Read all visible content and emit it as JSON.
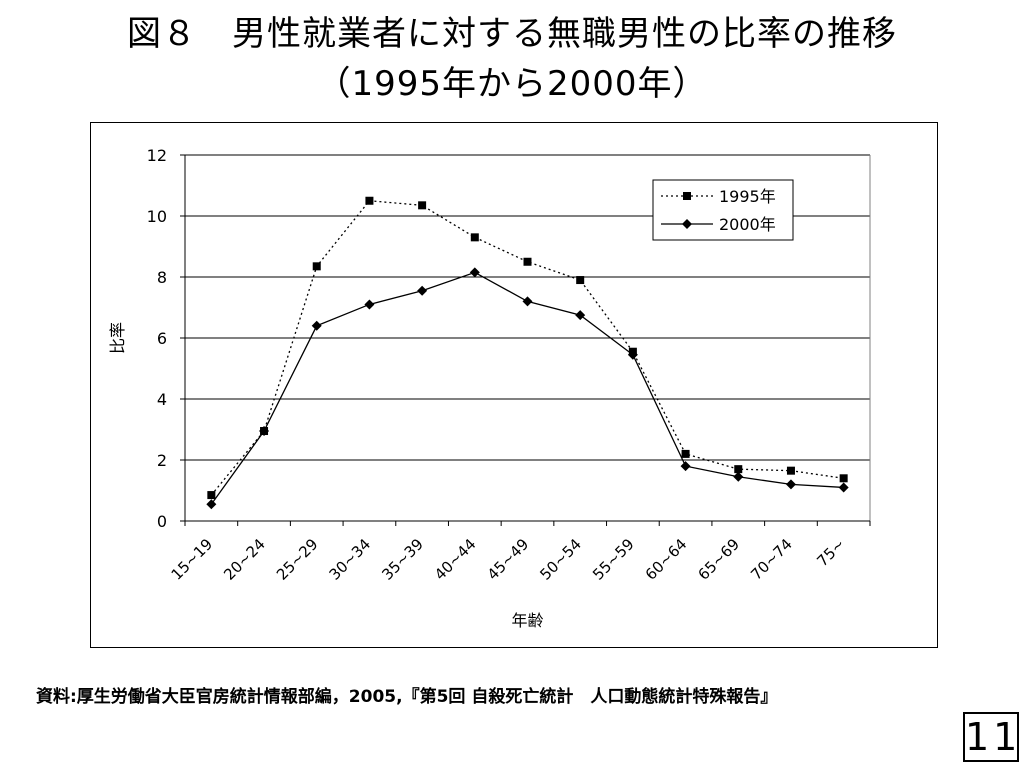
{
  "title_line1": "図８　男性就業者に対する無職男性の比率の推移",
  "title_line2": "（1995年から2000年）",
  "source": "資料:厚生労働省大臣官房統計情報部編，2005,『第5回 自殺死亡統計　人口動態統計特殊報告』",
  "page_number": "11",
  "colors": {
    "line": "#000000",
    "grid": "#000000",
    "background": "#ffffff"
  },
  "chart_data": {
    "type": "line",
    "xlabel": "年齢",
    "ylabel": "比率",
    "ylim": [
      0,
      12
    ],
    "yticks": [
      "0",
      "2",
      "4",
      "6",
      "8",
      "10",
      "12"
    ],
    "grid": "horizontal",
    "legend_position": "top-right",
    "categories": [
      "15~19",
      "20~24",
      "25~29",
      "30~34",
      "35~39",
      "40~44",
      "45~49",
      "50~54",
      "55~59",
      "60~64",
      "65~69",
      "70~74",
      "75~"
    ],
    "series": [
      {
        "name": "1995年",
        "marker": "square",
        "line_style": "dotted",
        "values": [
          0.85,
          2.95,
          8.35,
          10.5,
          10.35,
          9.3,
          8.5,
          7.9,
          5.55,
          2.2,
          1.7,
          1.65,
          1.4
        ]
      },
      {
        "name": "2000年",
        "marker": "diamond",
        "line_style": "solid",
        "values": [
          0.55,
          2.95,
          6.4,
          7.1,
          7.55,
          8.15,
          7.2,
          6.75,
          5.45,
          1.8,
          1.45,
          1.2,
          1.1
        ]
      }
    ]
  }
}
